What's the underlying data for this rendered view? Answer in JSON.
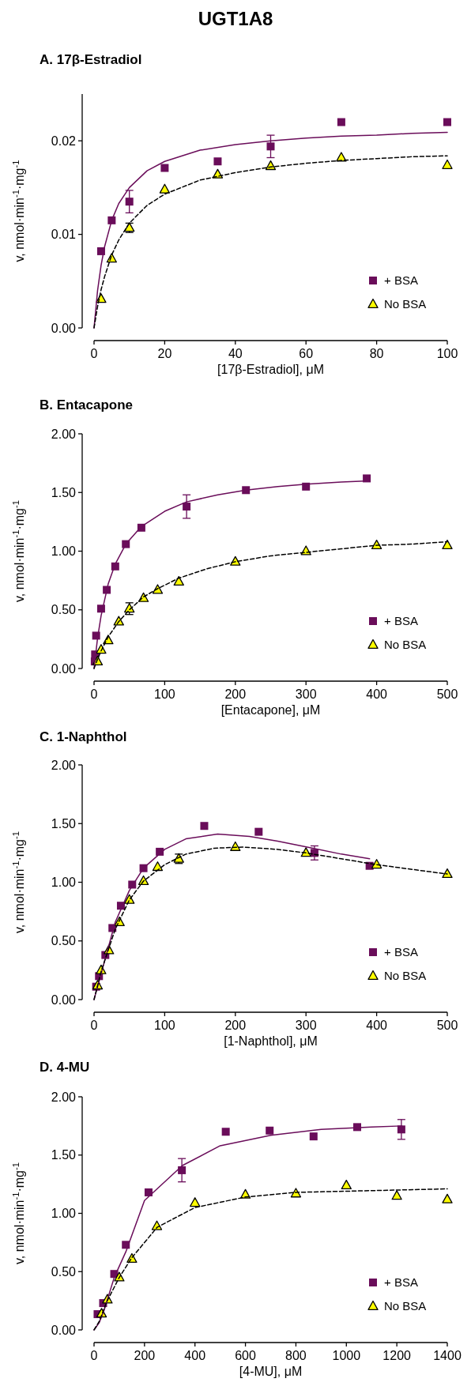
{
  "chart_data": [
    {
      "type": "scatter",
      "title": "UGT1A8",
      "subtitle": "A. 17β-Estradiol",
      "xlabel": "[17β-Estradiol], μM",
      "ylabel": "v, nmol·min$^{-1}$·mg$^{-1}$",
      "xlim": [
        0,
        100
      ],
      "xticks": [
        0,
        20,
        40,
        60,
        80,
        100
      ],
      "ylim": [
        0,
        0.025
      ],
      "yticks": [
        {
          "value": 0,
          "label": "0.00"
        },
        {
          "value": 0.01,
          "label": "0.01"
        },
        {
          "value": 0.02,
          "label": "0.02"
        }
      ],
      "legend": "bottom right",
      "grid": false,
      "series": [
        {
          "name": "+ BSA",
          "marker": "square",
          "color": "#6a0d5a",
          "x": [
            2,
            5,
            10,
            20,
            35,
            50,
            70,
            100
          ],
          "values": [
            0.0082,
            0.0115,
            0.0135,
            0.0171,
            0.0178,
            0.0194,
            0.022,
            0.022
          ],
          "errors": [
            null,
            null,
            0.0012,
            null,
            null,
            0.0012,
            null,
            null
          ]
        },
        {
          "name": "No BSA",
          "marker": "triangle",
          "color": "#ffff00",
          "x": [
            2,
            5,
            10,
            20,
            35,
            50,
            70,
            100
          ],
          "values": [
            0.0031,
            0.0074,
            0.0107,
            0.0148,
            0.0164,
            0.0173,
            0.0182,
            0.0174
          ],
          "errors": [
            null,
            null,
            0.0005,
            null,
            null,
            null,
            null,
            null
          ]
        },
        {
          "type": "line",
          "line_style": "solid",
          "color": "#6a0d5a",
          "x": [
            0,
            1,
            2,
            3,
            5,
            7,
            10,
            15,
            20,
            30,
            40,
            50,
            60,
            70,
            80,
            90,
            100
          ],
          "values": [
            0,
            0.004,
            0.0067,
            0.0087,
            0.0115,
            0.0133,
            0.015,
            0.0168,
            0.0178,
            0.019,
            0.0196,
            0.02,
            0.0203,
            0.0205,
            0.0206,
            0.0208,
            0.0209
          ]
        },
        {
          "type": "line",
          "line_style": "dashed",
          "color": "#000000",
          "x": [
            0,
            1,
            2,
            3,
            5,
            7,
            10,
            15,
            20,
            30,
            40,
            50,
            60,
            70,
            80,
            90,
            100
          ],
          "values": [
            0,
            0.0023,
            0.0041,
            0.0055,
            0.0078,
            0.0094,
            0.0112,
            0.0131,
            0.0143,
            0.0158,
            0.0166,
            0.0172,
            0.0176,
            0.0179,
            0.0181,
            0.0183,
            0.0184
          ]
        }
      ]
    },
    {
      "type": "scatter",
      "subtitle": "B. Entacapone",
      "xlabel": "[Entacapone], μM",
      "ylabel": "v, nmol·min$^{-1}$·mg$^{-1}$",
      "xlim": [
        0,
        500
      ],
      "xticks": [
        0,
        100,
        200,
        300,
        400,
        500
      ],
      "ylim": [
        0,
        2
      ],
      "yticks": [
        {
          "value": 0,
          "label": "0.00"
        },
        {
          "value": 0.5,
          "label": "0.50"
        },
        {
          "value": 1,
          "label": "1.00"
        },
        {
          "value": 1.5,
          "label": "1.50"
        },
        {
          "value": 2,
          "label": "2.00"
        }
      ],
      "legend": "bottom right",
      "grid": false,
      "series": [
        {
          "name": "+ BSA",
          "marker": "square",
          "color": "#6a0d5a",
          "x": [
            1,
            1.5,
            3,
            10,
            18,
            30,
            45,
            67,
            131,
            215,
            300,
            386
          ],
          "values": [
            0.06,
            0.12,
            0.28,
            0.51,
            0.67,
            0.87,
            1.06,
            1.2,
            1.38,
            1.52,
            1.55,
            1.62
          ],
          "errors": [
            null,
            null,
            null,
            null,
            null,
            null,
            null,
            null,
            0.1,
            null,
            null,
            null
          ]
        },
        {
          "name": "No BSA",
          "marker": "triangle",
          "color": "#ffff00",
          "x": [
            5,
            10,
            20,
            35,
            50,
            70,
            90,
            120,
            200,
            300,
            400,
            500
          ],
          "values": [
            0.06,
            0.16,
            0.24,
            0.4,
            0.51,
            0.6,
            0.67,
            0.74,
            0.91,
            1.0,
            1.05,
            1.05
          ],
          "errors": [
            null,
            null,
            null,
            null,
            0.05,
            null,
            null,
            null,
            null,
            null,
            null,
            null
          ]
        },
        {
          "type": "line",
          "line_style": "solid",
          "color": "#6a0d5a",
          "x": [
            0,
            5,
            10,
            20,
            30,
            45,
            67,
            100,
            131,
            175,
            215,
            260,
            300,
            350,
            390
          ],
          "values": [
            0,
            0.26,
            0.45,
            0.72,
            0.89,
            1.06,
            1.21,
            1.34,
            1.42,
            1.48,
            1.52,
            1.55,
            1.57,
            1.59,
            1.6
          ]
        },
        {
          "type": "line",
          "line_style": "dashed",
          "color": "#000000",
          "x": [
            0,
            5,
            10,
            20,
            35,
            50,
            70,
            90,
            120,
            160,
            200,
            250,
            300,
            350,
            400,
            450,
            500
          ],
          "values": [
            0,
            0.08,
            0.15,
            0.27,
            0.4,
            0.5,
            0.61,
            0.68,
            0.77,
            0.85,
            0.91,
            0.96,
            0.99,
            1.02,
            1.05,
            1.06,
            1.08
          ]
        }
      ]
    },
    {
      "type": "scatter",
      "subtitle": "C. 1-Naphthol",
      "xlabel": "[1-Naphthol], μM",
      "ylabel": "v, nmol·min$^{-1}$·mg$^{-1}$",
      "xlim": [
        0,
        500
      ],
      "xticks": [
        0,
        100,
        200,
        300,
        400,
        500
      ],
      "ylim": [
        0,
        2
      ],
      "yticks": [
        {
          "value": 0,
          "label": "0.00"
        },
        {
          "value": 0.5,
          "label": "0.50"
        },
        {
          "value": 1,
          "label": "1.00"
        },
        {
          "value": 1.5,
          "label": "1.50"
        },
        {
          "value": 2,
          "label": "2.00"
        }
      ],
      "legend": "bottom right",
      "grid": false,
      "series": [
        {
          "name": "+ BSA",
          "marker": "square",
          "color": "#6a0d5a",
          "x": [
            3,
            7,
            16,
            26,
            38,
            54,
            70,
            93,
            156,
            233,
            312,
            390
          ],
          "values": [
            0.11,
            0.2,
            0.38,
            0.61,
            0.8,
            0.98,
            1.12,
            1.26,
            1.48,
            1.43,
            1.25,
            1.14
          ],
          "errors": [
            null,
            null,
            null,
            null,
            null,
            null,
            null,
            null,
            null,
            null,
            0.06,
            null
          ]
        },
        {
          "name": "No BSA",
          "marker": "triangle",
          "color": "#ffff00",
          "x": [
            5,
            10,
            21,
            36,
            50,
            70,
            90,
            120,
            200,
            300,
            400,
            500
          ],
          "values": [
            0.12,
            0.25,
            0.42,
            0.66,
            0.85,
            1.01,
            1.13,
            1.2,
            1.3,
            1.25,
            1.15,
            1.07
          ],
          "errors": [
            null,
            null,
            null,
            null,
            null,
            null,
            null,
            0.04,
            null,
            null,
            null,
            null
          ]
        },
        {
          "type": "line",
          "line_style": "solid",
          "color": "#6a0d5a",
          "x": [
            0,
            10,
            20,
            30,
            50,
            70,
            100,
            130,
            175,
            220,
            260,
            310,
            350,
            390
          ],
          "values": [
            0,
            0.22,
            0.44,
            0.66,
            0.93,
            1.12,
            1.28,
            1.37,
            1.41,
            1.39,
            1.35,
            1.29,
            1.24,
            1.2
          ]
        },
        {
          "type": "line",
          "line_style": "dashed",
          "color": "#000000",
          "x": [
            0,
            10,
            20,
            30,
            50,
            70,
            100,
            130,
            170,
            210,
            260,
            300,
            350,
            400,
            450,
            500
          ],
          "values": [
            0,
            0.24,
            0.42,
            0.6,
            0.85,
            1.01,
            1.15,
            1.24,
            1.29,
            1.3,
            1.28,
            1.25,
            1.2,
            1.15,
            1.11,
            1.07
          ]
        }
      ]
    },
    {
      "type": "scatter",
      "subtitle": "D. 4-MU",
      "xlabel": "[4-MU], μM",
      "ylabel": "v, nmol·min$^{-1}$·mg$^{-1}$",
      "xlim": [
        0,
        1400
      ],
      "xticks": [
        0,
        200,
        400,
        600,
        800,
        1000,
        1200,
        1400
      ],
      "ylim": [
        0,
        2
      ],
      "yticks": [
        {
          "value": 0,
          "label": "0.00"
        },
        {
          "value": 0.5,
          "label": "0.50"
        },
        {
          "value": 1,
          "label": "1.00"
        },
        {
          "value": 1.5,
          "label": "1.50"
        },
        {
          "value": 2,
          "label": "2.00"
        }
      ],
      "legend": "bottom right",
      "grid": false,
      "series": [
        {
          "name": "+ BSA",
          "marker": "square",
          "color": "#6a0d5a",
          "x": [
            14,
            36,
            80,
            126,
            216,
            348,
            522,
            696,
            870,
            1043,
            1218
          ],
          "values": [
            0.135,
            0.23,
            0.48,
            0.73,
            1.18,
            1.37,
            1.7,
            1.71,
            1.66,
            1.74,
            1.72
          ],
          "errors": [
            null,
            null,
            null,
            null,
            null,
            0.1,
            null,
            null,
            null,
            null,
            0.085
          ]
        },
        {
          "name": "No BSA",
          "marker": "triangle",
          "color": "#ffff00",
          "x": [
            30,
            53,
            100,
            150,
            249,
            400,
            600,
            800,
            1000,
            1200,
            1400
          ],
          "values": [
            0.14,
            0.26,
            0.45,
            0.61,
            0.89,
            1.09,
            1.16,
            1.17,
            1.24,
            1.15,
            1.12
          ]
        },
        {
          "type": "line",
          "line_style": "solid",
          "color": "#6a0d5a",
          "x": [
            0,
            20,
            40,
            80,
            126,
            200,
            350,
            500,
            700,
            900,
            1100,
            1220
          ],
          "values": [
            0,
            0.06,
            0.17,
            0.45,
            0.67,
            1.11,
            1.41,
            1.58,
            1.67,
            1.72,
            1.74,
            1.75
          ]
        },
        {
          "type": "line",
          "line_style": "dashed",
          "color": "#000000",
          "x": [
            0,
            20,
            50,
            100,
            150,
            250,
            400,
            600,
            800,
            1000,
            1200,
            1400
          ],
          "values": [
            0,
            0.07,
            0.24,
            0.45,
            0.62,
            0.88,
            1.05,
            1.14,
            1.18,
            1.19,
            1.2,
            1.21
          ]
        }
      ]
    }
  ]
}
